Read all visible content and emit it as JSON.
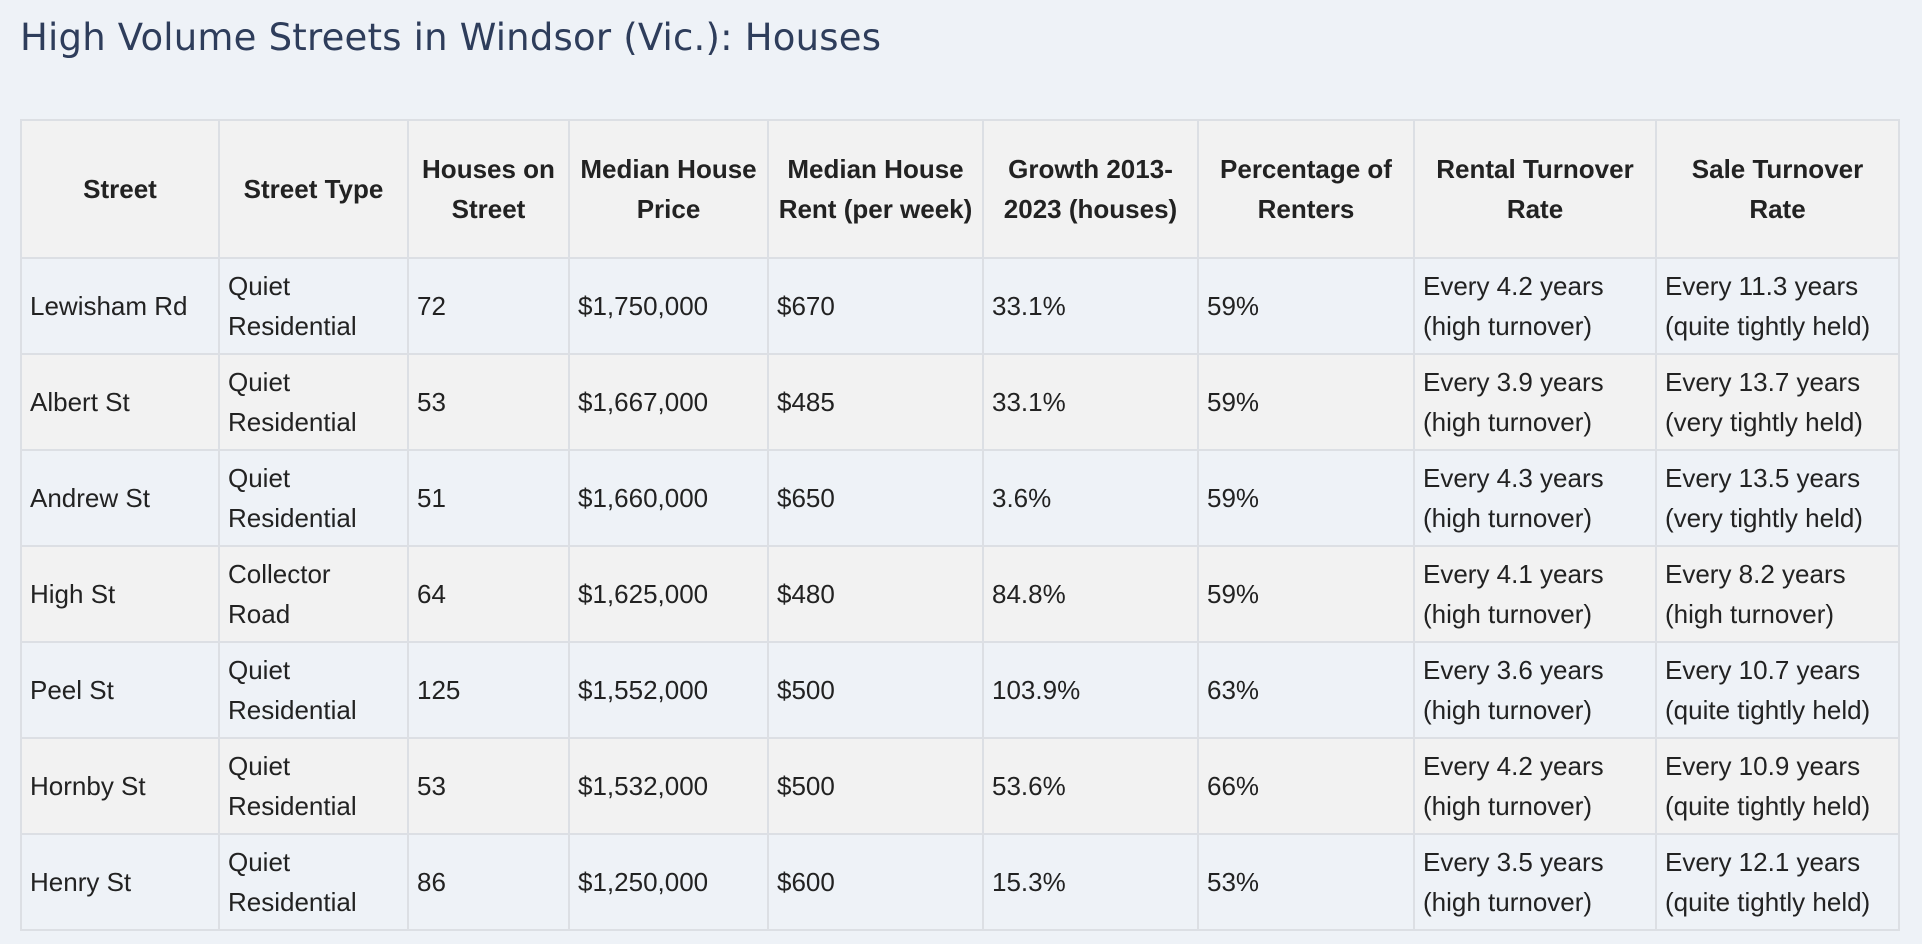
{
  "title": "High Volume Streets in Windsor (Vic.): Houses",
  "table": {
    "headers": [
      "Street",
      "Street Type",
      "Houses on Street",
      "Median House Price",
      "Median House Rent (per week)",
      "Growth 2013-2023 (houses)",
      "Percentage of Renters",
      "Rental Turnover Rate",
      "Sale Turnover Rate"
    ],
    "rows": [
      [
        "Lewisham Rd",
        "Quiet Residential",
        "72",
        "$1,750,000",
        "$670",
        "33.1%",
        "59%",
        "Every 4.2 years (high turnover)",
        "Every 11.3 years (quite tightly held)"
      ],
      [
        "Albert St",
        "Quiet Residential",
        "53",
        "$1,667,000",
        "$485",
        "33.1%",
        "59%",
        "Every 3.9 years (high turnover)",
        "Every 13.7 years (very tightly held)"
      ],
      [
        "Andrew St",
        "Quiet Residential",
        "51",
        "$1,660,000",
        "$650",
        "3.6%",
        "59%",
        "Every 4.3 years (high turnover)",
        "Every 13.5 years (very tightly held)"
      ],
      [
        "High St",
        "Collector Road",
        "64",
        "$1,625,000",
        "$480",
        "84.8%",
        "59%",
        "Every 4.1 years (high turnover)",
        "Every 8.2 years (high turnover)"
      ],
      [
        "Peel St",
        "Quiet Residential",
        "125",
        "$1,552,000",
        "$500",
        "103.9%",
        "63%",
        "Every 3.6 years (high turnover)",
        "Every 10.7 years (quite tightly held)"
      ],
      [
        "Hornby St",
        "Quiet Residential",
        "53",
        "$1,532,000",
        "$500",
        "53.6%",
        "66%",
        "Every 4.2 years (high turnover)",
        "Every 10.9 years (quite tightly held)"
      ],
      [
        "Henry St",
        "Quiet Residential",
        "86",
        "$1,250,000",
        "$600",
        "15.3%",
        "53%",
        "Every 3.5 years (high turnover)",
        "Every 12.1 years (quite tightly held)"
      ]
    ]
  }
}
